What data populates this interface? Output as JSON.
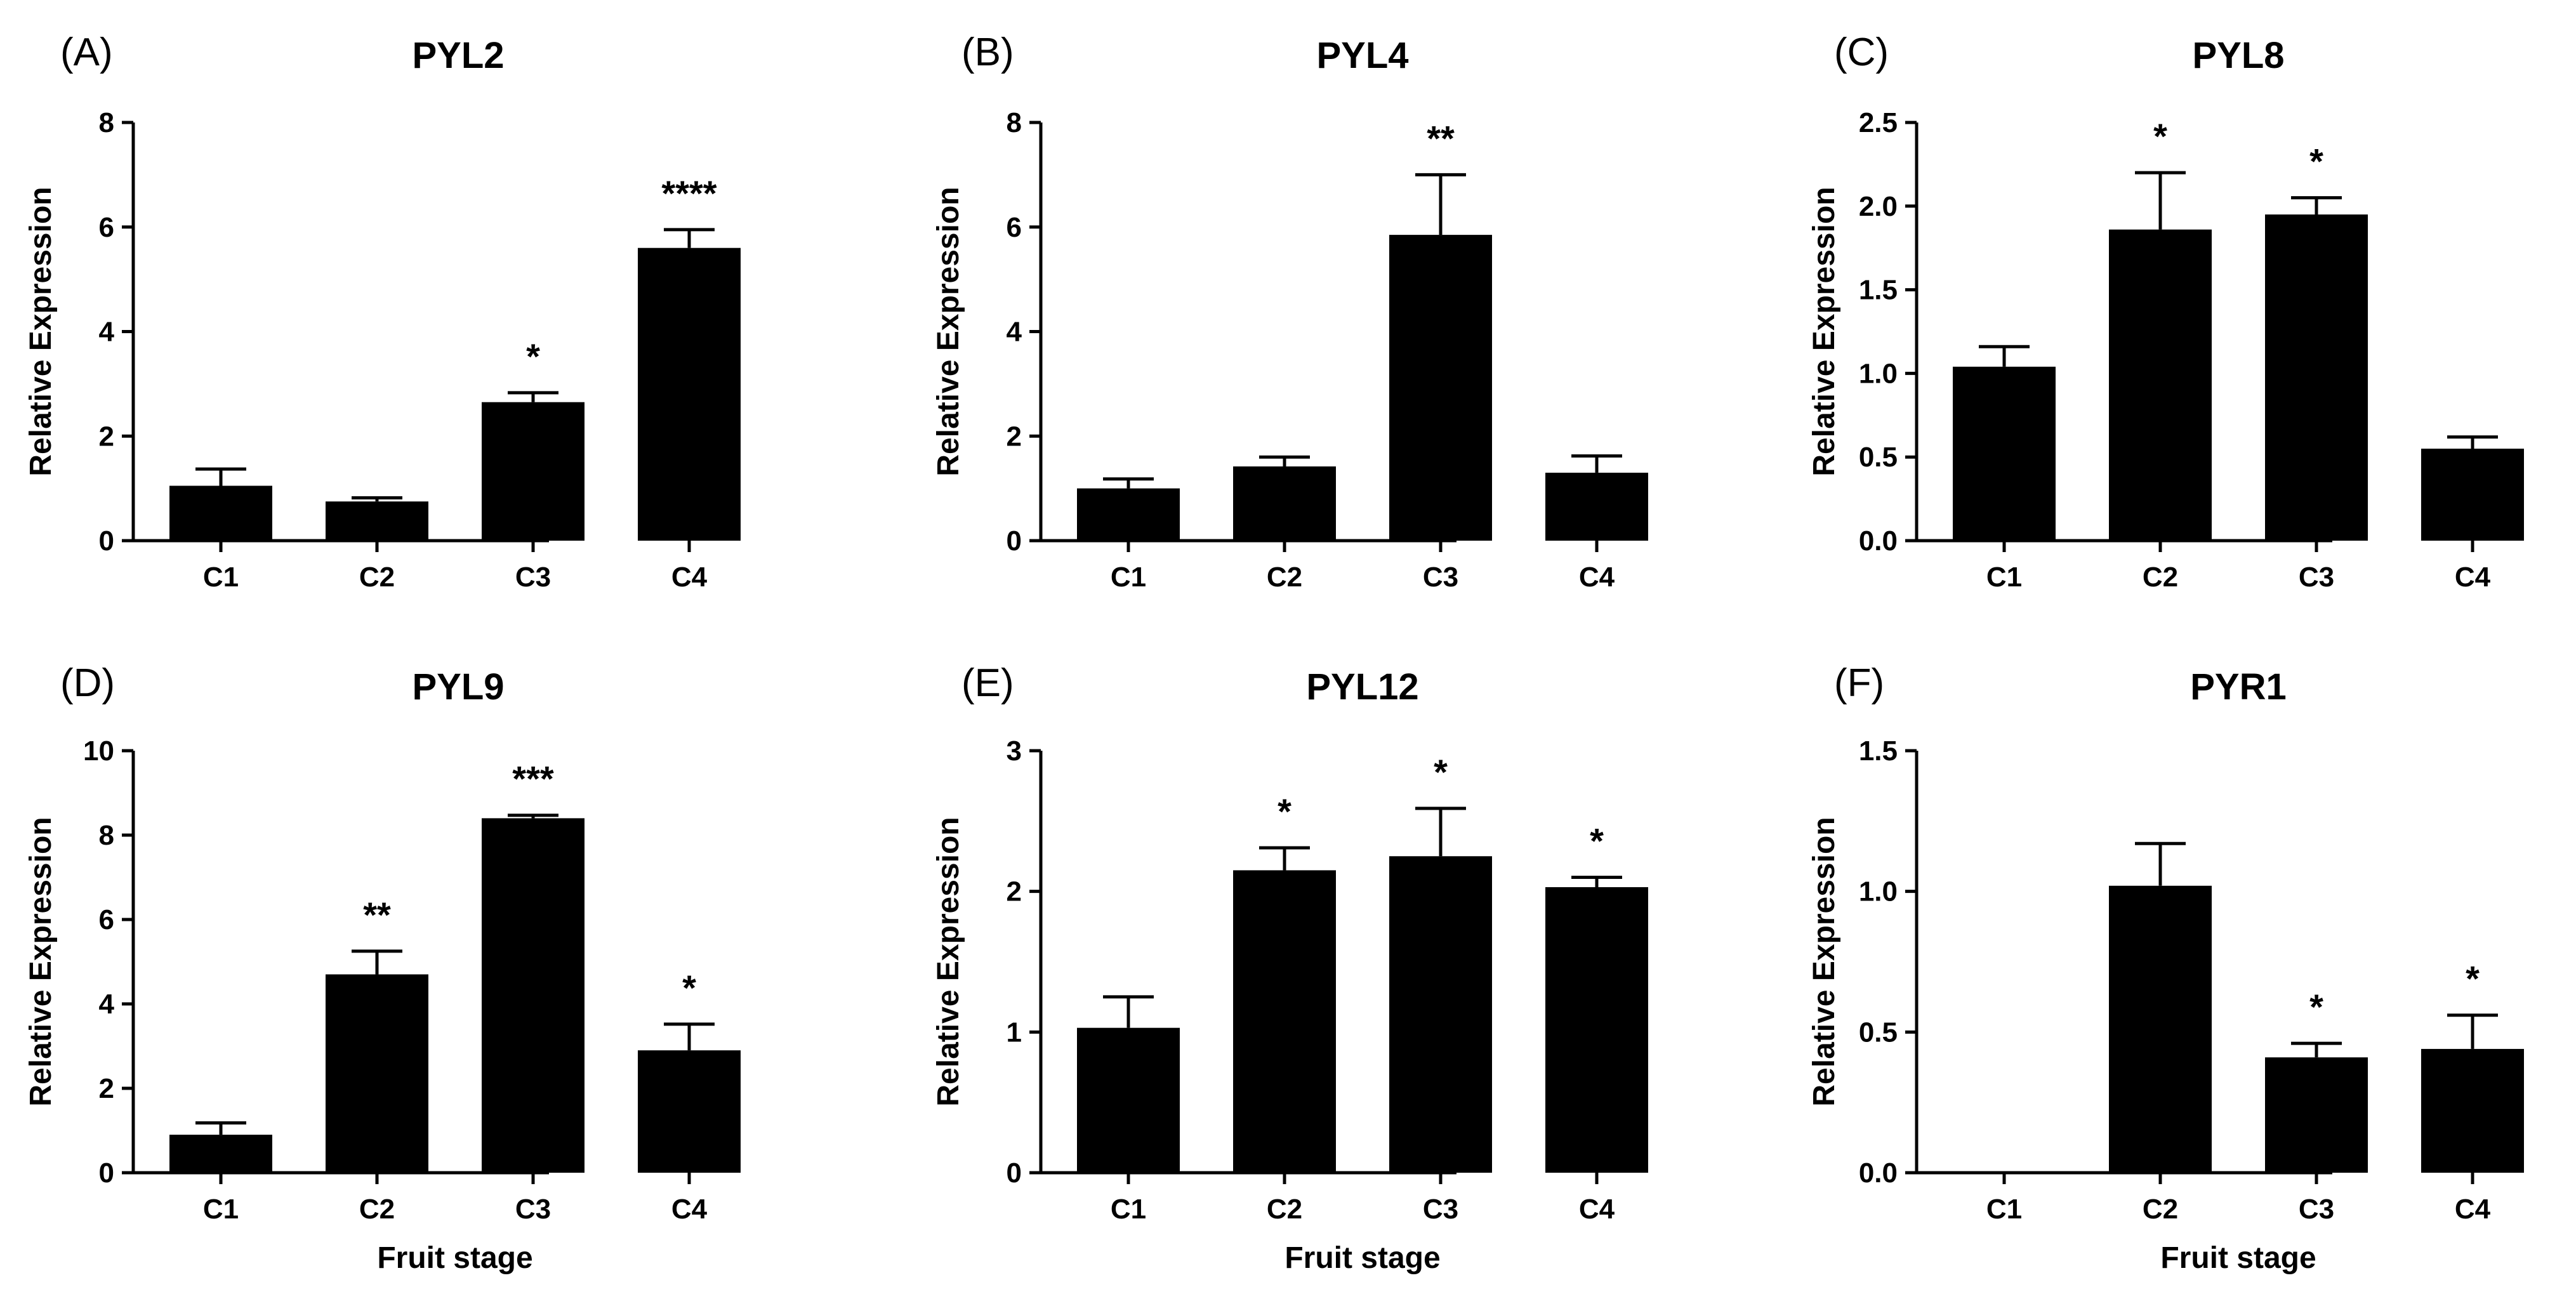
{
  "chart_data": [
    {
      "type": "bar",
      "panel": "(A)",
      "title": "PYL2",
      "xlabel": "",
      "ylabel": "Relative Expression",
      "categories": [
        "C1",
        "C2",
        "C3",
        "C4"
      ],
      "values": [
        1.05,
        0.75,
        2.65,
        5.6
      ],
      "errors": [
        0.32,
        0.07,
        0.18,
        0.35
      ],
      "significance": [
        "",
        "",
        "*",
        "****"
      ],
      "ylim": [
        0,
        8
      ],
      "yticks": [
        0,
        2,
        4,
        6,
        8
      ],
      "ytick_labels": [
        "0",
        "2",
        "4",
        "6",
        "8"
      ]
    },
    {
      "type": "bar",
      "panel": "(B)",
      "title": "PYL4",
      "xlabel": "",
      "ylabel": "Relative Expression",
      "categories": [
        "C1",
        "C2",
        "C3",
        "C4"
      ],
      "values": [
        1.0,
        1.42,
        5.85,
        1.3
      ],
      "errors": [
        0.18,
        0.18,
        1.15,
        0.32
      ],
      "significance": [
        "",
        "",
        "**",
        ""
      ],
      "ylim": [
        0,
        8
      ],
      "yticks": [
        0,
        2,
        4,
        6,
        8
      ],
      "ytick_labels": [
        "0",
        "2",
        "4",
        "6",
        "8"
      ]
    },
    {
      "type": "bar",
      "panel": "(C)",
      "title": "PYL8",
      "xlabel": "",
      "ylabel": "Relative Expression",
      "categories": [
        "C1",
        "C2",
        "C3",
        "C4"
      ],
      "values": [
        1.04,
        1.86,
        1.95,
        0.55
      ],
      "errors": [
        0.12,
        0.34,
        0.1,
        0.07
      ],
      "significance": [
        "",
        "*",
        "*",
        ""
      ],
      "ylim": [
        0,
        2.5
      ],
      "yticks": [
        0,
        0.5,
        1.0,
        1.5,
        2.0,
        2.5
      ],
      "ytick_labels": [
        "0.0",
        "0.5",
        "1.0",
        "1.5",
        "2.0",
        "2.5"
      ]
    },
    {
      "type": "bar",
      "panel": "(D)",
      "title": "PYL9",
      "xlabel": "Fruit stage",
      "ylabel": "Relative Expression",
      "categories": [
        "C1",
        "C2",
        "C3",
        "C4"
      ],
      "values": [
        0.9,
        4.7,
        8.4,
        2.9
      ],
      "errors": [
        0.28,
        0.55,
        0.07,
        0.62
      ],
      "significance": [
        "",
        "**",
        "***",
        "*"
      ],
      "ylim": [
        0,
        10
      ],
      "yticks": [
        0,
        2,
        4,
        6,
        8,
        10
      ],
      "ytick_labels": [
        "0",
        "2",
        "4",
        "6",
        "8",
        "10"
      ]
    },
    {
      "type": "bar",
      "panel": "(E)",
      "title": "PYL12",
      "xlabel": "Fruit stage",
      "ylabel": "Relative Expression",
      "categories": [
        "C1",
        "C2",
        "C3",
        "C4"
      ],
      "values": [
        1.03,
        2.15,
        2.25,
        2.03
      ],
      "errors": [
        0.22,
        0.16,
        0.34,
        0.07
      ],
      "significance": [
        "",
        "*",
        "*",
        "*"
      ],
      "ylim": [
        0,
        3
      ],
      "yticks": [
        0,
        1,
        2,
        3
      ],
      "ytick_labels": [
        "0",
        "1",
        "2",
        "3"
      ]
    },
    {
      "type": "bar",
      "panel": "(F)",
      "title": "PYR1",
      "xlabel": "Fruit stage",
      "ylabel": "Relative Expression",
      "categories": [
        "C1",
        "C2",
        "C3",
        "C4"
      ],
      "values": [
        0.0,
        1.02,
        0.41,
        0.44
      ],
      "errors": [
        0.0,
        0.15,
        0.05,
        0.12
      ],
      "significance": [
        "",
        "",
        "*",
        "*"
      ],
      "ylim": [
        0,
        1.5
      ],
      "yticks": [
        0,
        0.5,
        1.0,
        1.5
      ],
      "ytick_labels": [
        "0.0",
        "0.5",
        "1.0",
        "1.5"
      ]
    }
  ],
  "colors": {
    "bar": "#000000",
    "axis": "#000000",
    "background": "#ffffff"
  }
}
